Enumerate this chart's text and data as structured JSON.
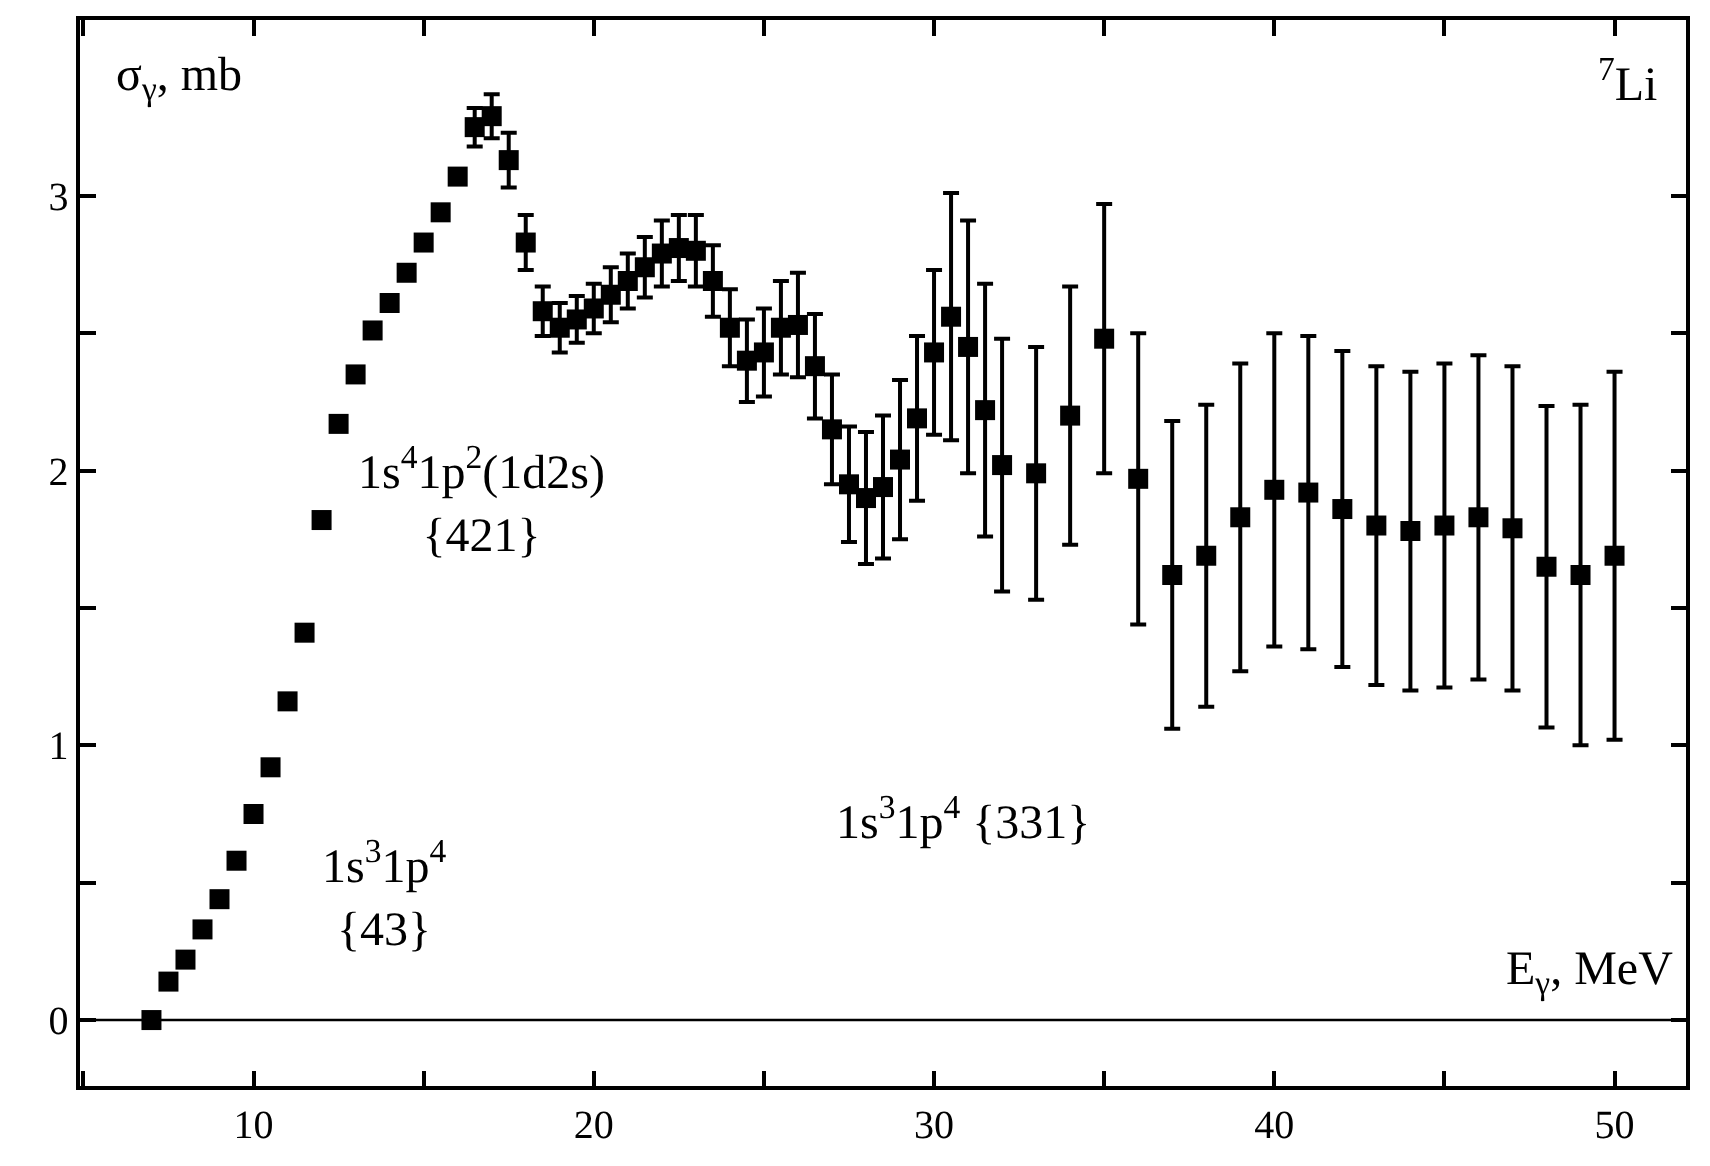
{
  "chart_data": {
    "type": "scatter",
    "xlabel": "E$_{γ}$, MeV",
    "ylabel": "σ$_{γ}$, mb",
    "annotations": [
      "$^{7}$Li",
      "1s$^{4}$1p$^{2}$(1d2s)\n{421}",
      "1s$^{3}$1p$^{4}$\n{43}",
      "1s$^{3}$1p$^{4}$ {331}"
    ],
    "x": [
      7,
      7.5,
      8,
      8.5,
      9,
      9.5,
      10,
      10.5,
      11,
      11.5,
      12,
      12.5,
      13,
      13.5,
      14,
      14.5,
      15,
      15.5,
      16,
      16.5,
      17,
      17.5,
      18,
      18.5,
      19,
      19.5,
      20,
      20.5,
      21,
      21.5,
      22,
      22.5,
      23,
      23.5,
      24,
      24.5,
      25,
      25.5,
      26,
      26.5,
      27,
      27.5,
      28,
      28.5,
      29,
      29.5,
      30,
      30.5,
      31,
      31.5,
      32,
      33,
      34,
      35,
      36,
      37,
      38,
      39,
      40,
      41,
      42,
      43,
      44,
      45,
      46,
      47,
      48,
      49,
      50
    ],
    "series": [
      {
        "color": "#000000",
        "values": [
          0.0,
          0.14,
          0.22,
          0.33,
          0.44,
          0.58,
          0.75,
          0.92,
          1.16,
          1.41,
          1.82,
          2.17,
          2.35,
          2.51,
          2.61,
          2.72,
          2.83,
          2.94,
          3.07,
          3.25,
          3.29,
          3.13,
          2.83,
          2.58,
          2.52,
          2.55,
          2.59,
          2.64,
          2.69,
          2.74,
          2.79,
          2.81,
          2.8,
          2.69,
          2.52,
          2.4,
          2.43,
          2.52,
          2.53,
          2.38,
          2.15,
          1.95,
          1.9,
          1.94,
          2.04,
          2.19,
          2.43,
          2.56,
          2.45,
          2.22,
          2.02,
          1.99,
          2.2,
          2.48,
          1.97,
          1.62,
          1.69,
          1.83,
          1.93,
          1.92,
          1.86,
          1.8,
          1.78,
          1.8,
          1.83,
          1.79,
          1.65,
          1.62,
          1.69
        ],
        "errors": [
          null,
          null,
          null,
          null,
          null,
          null,
          null,
          null,
          null,
          null,
          null,
          null,
          null,
          null,
          null,
          null,
          null,
          null,
          null,
          0.07,
          0.08,
          0.1,
          0.1,
          0.09,
          0.09,
          0.085,
          0.09,
          0.1,
          0.1,
          0.11,
          0.12,
          0.12,
          0.13,
          0.13,
          0.14,
          0.15,
          0.16,
          0.17,
          0.19,
          0.19,
          0.2,
          0.21,
          0.24,
          0.26,
          0.29,
          0.3,
          0.3,
          0.45,
          0.46,
          0.46,
          0.46,
          0.46,
          0.47,
          0.49,
          0.53,
          0.56,
          0.55,
          0.56,
          0.57,
          0.57,
          0.575,
          0.58,
          0.58,
          0.59,
          0.59,
          0.59,
          0.585,
          0.62,
          0.67
        ]
      }
    ],
    "marker": "square",
    "xlim": [
      4.9,
      52.1
    ],
    "ylim": [
      -0.24,
      3.64
    ],
    "xticks": [
      {
        "value": 5,
        "label": null
      },
      10,
      {
        "value": 15,
        "label": null
      },
      20,
      {
        "value": 25,
        "label": null
      },
      30,
      {
        "value": 35,
        "label": null
      },
      40,
      {
        "value": 45,
        "label": null
      },
      50
    ],
    "yticks": [
      0,
      {
        "value": 0.5,
        "label": null
      },
      1,
      {
        "value": 1.5,
        "label": null
      },
      2,
      {
        "value": 2.5,
        "label": null
      },
      3
    ],
    "ref_lines": [
      {
        "axis": "y",
        "value": 0,
        "label": null,
        "color": "#000000"
      }
    ]
  }
}
